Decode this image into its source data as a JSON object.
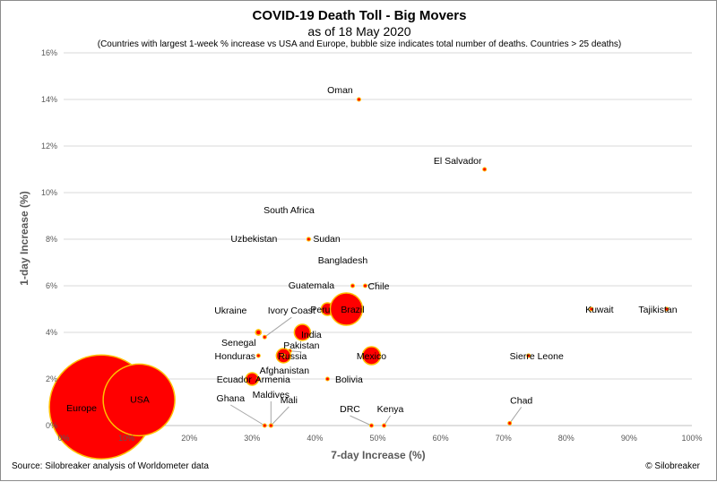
{
  "header": {
    "title": "COVID-19 Death Toll - Big Movers",
    "subtitle": "as of 18 May 2020",
    "note": "(Countries with largest 1-week % increase vs USA and Europe, bubble size indicates total number of deaths. Countries > 25 deaths)"
  },
  "footer": {
    "source": "Source: Silobreaker analysis of Worldometer data",
    "credit": "© Silobreaker"
  },
  "colors": {
    "bubble_fill": "#ff0000",
    "bubble_edge": "#ffc000",
    "grid": "#d9d9d9",
    "leader": "#a6a6a6"
  },
  "chart_data": {
    "type": "bubble",
    "xlabel": "7-day Increase (%)",
    "ylabel": "1-day Increase (%)",
    "xlim": [
      0,
      100
    ],
    "ylim": [
      0,
      16
    ],
    "x_ticks": [
      0,
      10,
      20,
      30,
      40,
      50,
      60,
      70,
      80,
      90,
      100
    ],
    "y_ticks": [
      0,
      2,
      4,
      6,
      8,
      10,
      12,
      14,
      16
    ],
    "x_tick_labels": [
      "0%",
      "10%",
      "20%",
      "30%",
      "40%",
      "50%",
      "60%",
      "70%",
      "80%",
      "90%",
      "100%"
    ],
    "y_tick_labels": [
      "0%",
      "2%",
      "4%",
      "6%",
      "8%",
      "10%",
      "12%",
      "14%",
      "16%"
    ],
    "grid": "horizontal",
    "points": [
      {
        "label": "Europe",
        "x": 6,
        "y": 0.8,
        "r": 58
      },
      {
        "label": "USA",
        "x": 12,
        "y": 1.1,
        "r": 40
      },
      {
        "label": "Oman",
        "x": 47,
        "y": 14
      },
      {
        "label": "El Salvador",
        "x": 67,
        "y": 11
      },
      {
        "label": "South Africa",
        "x": 39,
        "y": 8
      },
      {
        "label": "Uzbekistan",
        "x": 39,
        "y": 8
      },
      {
        "label": "Sudan",
        "x": 39,
        "y": 8
      },
      {
        "label": "Bangladesh",
        "x": 46,
        "y": 6
      },
      {
        "label": "Guatemala",
        "x": 46,
        "y": 6
      },
      {
        "label": "Chile",
        "x": 48,
        "y": 6
      },
      {
        "label": "Peru",
        "x": 42,
        "y": 5,
        "r": 7
      },
      {
        "label": "Brazil",
        "x": 45,
        "y": 5,
        "r": 18
      },
      {
        "label": "Kuwait",
        "x": 84,
        "y": 5
      },
      {
        "label": "Tajikistan",
        "x": 96,
        "y": 5
      },
      {
        "label": "Ukraine",
        "x": 31,
        "y": 4,
        "r": 3
      },
      {
        "label": "Ivory Coast",
        "x": 32,
        "y": 3.8
      },
      {
        "label": "India",
        "x": 38,
        "y": 4,
        "r": 9
      },
      {
        "label": "Senegal",
        "x": 31,
        "y": 4,
        "r": 3
      },
      {
        "label": "Pakistan",
        "x": 36,
        "y": 3.2
      },
      {
        "label": "Honduras",
        "x": 31,
        "y": 3
      },
      {
        "label": "Russia",
        "x": 35,
        "y": 3,
        "r": 8
      },
      {
        "label": "Mexico",
        "x": 49,
        "y": 3,
        "r": 10
      },
      {
        "label": "Sierre Leone",
        "x": 74,
        "y": 3
      },
      {
        "label": "Afghanistan",
        "x": 35,
        "y": 3
      },
      {
        "label": "Ecuador",
        "x": 30,
        "y": 2,
        "r": 7
      },
      {
        "label": "Armenia",
        "x": 31,
        "y": 2
      },
      {
        "label": "Bolivia",
        "x": 42,
        "y": 2
      },
      {
        "label": "Ghana",
        "x": 32,
        "y": 0
      },
      {
        "label": "Maldives",
        "x": 33,
        "y": 0
      },
      {
        "label": "Mali",
        "x": 33,
        "y": 0
      },
      {
        "label": "DRC",
        "x": 49,
        "y": 0
      },
      {
        "label": "Kenya",
        "x": 51,
        "y": 0
      },
      {
        "label": "Chad",
        "x": 71,
        "y": 0.1
      }
    ]
  }
}
